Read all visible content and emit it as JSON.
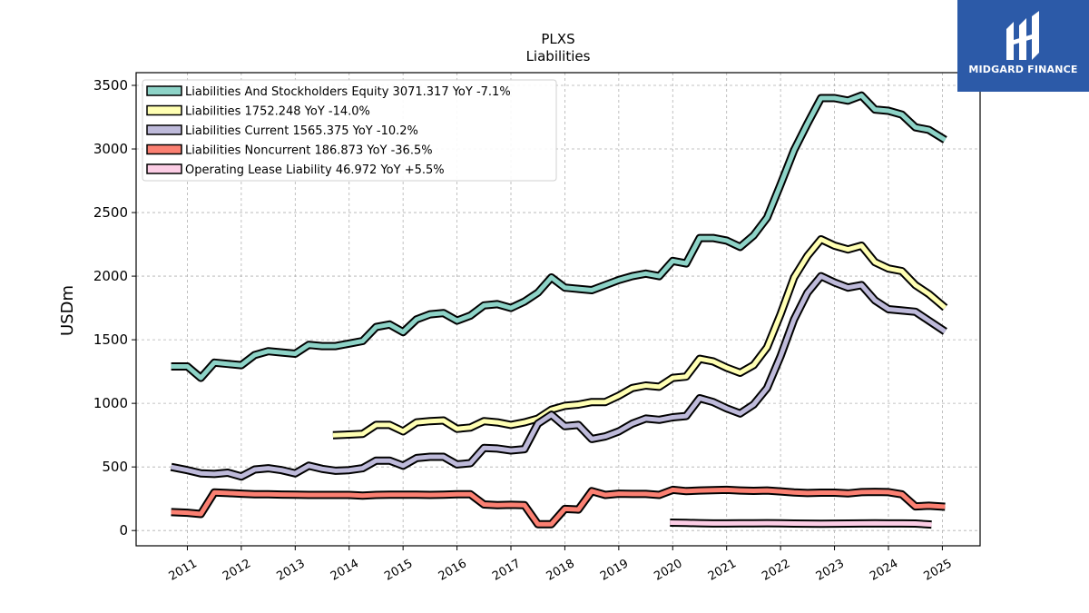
{
  "chart_data": {
    "type": "line",
    "title": "PLXS",
    "subtitle": "Liabilities",
    "xlabel": "",
    "ylabel": "USDm",
    "xlim": [
      2010.05,
      2025.7
    ],
    "ylim": [
      -120,
      3600
    ],
    "y_ticks": [
      0,
      500,
      1000,
      1500,
      2000,
      2500,
      3000,
      3500
    ],
    "x_ticks": [
      2011,
      2012,
      2013,
      2014,
      2015,
      2016,
      2017,
      2018,
      2019,
      2020,
      2021,
      2022,
      2023,
      2024,
      2025
    ],
    "grid": true,
    "legend_position": "top-left",
    "series": [
      {
        "name": "Liabilities And Stockholders Equity",
        "legend_label": "Liabilities And Stockholders Equity  3071.317 YoY -7.1%",
        "color": "#8dd3c7",
        "x": [
          2010.7,
          2011.0,
          2011.25,
          2011.5,
          2011.75,
          2012.0,
          2012.25,
          2012.5,
          2012.75,
          2013.0,
          2013.25,
          2013.5,
          2013.75,
          2014.0,
          2014.25,
          2014.5,
          2014.75,
          2015.0,
          2015.25,
          2015.5,
          2015.75,
          2016.0,
          2016.25,
          2016.5,
          2016.75,
          2017.0,
          2017.25,
          2017.5,
          2017.75,
          2018.0,
          2018.25,
          2018.5,
          2018.75,
          2019.0,
          2019.25,
          2019.5,
          2019.75,
          2020.0,
          2020.25,
          2020.5,
          2020.75,
          2021.0,
          2021.25,
          2021.5,
          2021.75,
          2022.0,
          2022.25,
          2022.5,
          2022.75,
          2023.0,
          2023.25,
          2023.5,
          2023.75,
          2024.0,
          2024.25,
          2024.5,
          2024.75,
          2025.05
        ],
        "values": [
          1290,
          1290,
          1200,
          1320,
          1310,
          1300,
          1380,
          1410,
          1400,
          1390,
          1460,
          1450,
          1450,
          1470,
          1490,
          1600,
          1620,
          1560,
          1660,
          1700,
          1710,
          1650,
          1690,
          1770,
          1780,
          1750,
          1800,
          1870,
          1990,
          1910,
          1900,
          1890,
          1930,
          1970,
          2000,
          2020,
          2000,
          2120,
          2100,
          2300,
          2300,
          2280,
          2230,
          2320,
          2460,
          2720,
          2990,
          3200,
          3400,
          3400,
          3380,
          3420,
          3310,
          3300,
          3270,
          3170,
          3150,
          3071.317
        ]
      },
      {
        "name": "Liabilities",
        "legend_label": "Liabilities  1752.248 YoY -14.0%",
        "color": "#ffffb3",
        "x": [
          2013.7,
          2014.0,
          2014.25,
          2014.5,
          2014.75,
          2015.0,
          2015.25,
          2015.5,
          2015.75,
          2016.0,
          2016.25,
          2016.5,
          2016.75,
          2017.0,
          2017.25,
          2017.5,
          2017.75,
          2018.0,
          2018.25,
          2018.5,
          2018.75,
          2019.0,
          2019.25,
          2019.5,
          2019.75,
          2020.0,
          2020.25,
          2020.5,
          2020.75,
          2021.0,
          2021.25,
          2021.5,
          2021.75,
          2022.0,
          2022.25,
          2022.5,
          2022.75,
          2023.0,
          2023.25,
          2023.5,
          2023.75,
          2024.0,
          2024.25,
          2024.5,
          2024.75,
          2025.05
        ],
        "values": [
          750,
          755,
          760,
          830,
          830,
          780,
          850,
          860,
          865,
          800,
          810,
          860,
          850,
          830,
          850,
          880,
          950,
          980,
          990,
          1010,
          1010,
          1060,
          1120,
          1140,
          1130,
          1200,
          1210,
          1350,
          1330,
          1280,
          1240,
          1300,
          1440,
          1700,
          1990,
          2160,
          2290,
          2240,
          2210,
          2240,
          2110,
          2060,
          2040,
          1930,
          1860,
          1752.248
        ]
      },
      {
        "name": "Liabilities Current",
        "legend_label": "Liabilities Current  1565.375 YoY -10.2%",
        "color": "#bebada",
        "x": [
          2010.7,
          2011.0,
          2011.25,
          2011.5,
          2011.75,
          2012.0,
          2012.25,
          2012.5,
          2012.75,
          2013.0,
          2013.25,
          2013.5,
          2013.75,
          2014.0,
          2014.25,
          2014.5,
          2014.75,
          2015.0,
          2015.25,
          2015.5,
          2015.75,
          2016.0,
          2016.25,
          2016.5,
          2016.75,
          2017.0,
          2017.25,
          2017.5,
          2017.75,
          2018.0,
          2018.25,
          2018.5,
          2018.75,
          2019.0,
          2019.25,
          2019.5,
          2019.75,
          2020.0,
          2020.25,
          2020.5,
          2020.75,
          2021.0,
          2021.25,
          2021.5,
          2021.75,
          2022.0,
          2022.25,
          2022.5,
          2022.75,
          2023.0,
          2023.25,
          2023.5,
          2023.75,
          2024.0,
          2024.25,
          2024.5,
          2024.75,
          2025.05
        ],
        "values": [
          500,
          475,
          450,
          445,
          455,
          425,
          480,
          490,
          475,
          450,
          510,
          485,
          470,
          475,
          490,
          550,
          550,
          510,
          570,
          580,
          580,
          520,
          530,
          650,
          645,
          630,
          640,
          840,
          910,
          820,
          830,
          720,
          740,
          780,
          840,
          880,
          870,
          890,
          900,
          1040,
          1010,
          960,
          920,
          990,
          1120,
          1370,
          1660,
          1870,
          2000,
          1950,
          1910,
          1930,
          1810,
          1740,
          1730,
          1720,
          1650,
          1565.375
        ]
      },
      {
        "name": "Liabilities Noncurrent",
        "legend_label": "Liabilities Noncurrent  186.873 YoY -36.5%",
        "color": "#fb8072",
        "x": [
          2010.7,
          2011.0,
          2011.25,
          2011.5,
          2011.75,
          2012.0,
          2012.25,
          2012.5,
          2012.75,
          2013.0,
          2013.25,
          2013.5,
          2013.75,
          2014.0,
          2014.25,
          2014.5,
          2014.75,
          2015.0,
          2015.25,
          2015.5,
          2015.75,
          2016.0,
          2016.25,
          2016.5,
          2016.75,
          2017.0,
          2017.25,
          2017.5,
          2017.75,
          2018.0,
          2018.25,
          2018.5,
          2018.75,
          2019.0,
          2019.25,
          2019.5,
          2019.75,
          2020.0,
          2020.25,
          2020.5,
          2020.75,
          2021.0,
          2021.25,
          2021.5,
          2021.75,
          2022.0,
          2022.25,
          2022.5,
          2022.75,
          2023.0,
          2023.25,
          2023.5,
          2023.75,
          2024.0,
          2024.25,
          2024.5,
          2024.75,
          2025.05
        ],
        "values": [
          145,
          140,
          130,
          300,
          295,
          290,
          285,
          285,
          283,
          282,
          280,
          280,
          280,
          280,
          275,
          280,
          282,
          282,
          282,
          280,
          282,
          285,
          285,
          205,
          200,
          202,
          200,
          50,
          50,
          170,
          165,
          310,
          280,
          290,
          288,
          288,
          280,
          320,
          310,
          315,
          318,
          320,
          315,
          312,
          315,
          308,
          300,
          295,
          298,
          298,
          292,
          302,
          304,
          302,
          285,
          190,
          195,
          186.873
        ]
      },
      {
        "name": "Operating Lease Liability",
        "legend_label": "Operating Lease Liability  46.972 YoY +5.5%",
        "color": "#fccde5",
        "x": [
          2019.95,
          2020.25,
          2020.5,
          2020.75,
          2021.0,
          2021.25,
          2021.5,
          2021.75,
          2022.0,
          2022.25,
          2022.5,
          2022.75,
          2023.0,
          2023.25,
          2023.5,
          2023.75,
          2024.0,
          2024.25,
          2024.5,
          2024.8
        ],
        "values": [
          62,
          60,
          58,
          56,
          56,
          57,
          57,
          58,
          57,
          55,
          54,
          53,
          54,
          55,
          56,
          57,
          56,
          56,
          55,
          46.972
        ]
      }
    ]
  },
  "brand": {
    "name": "MIDGARD FINANCE",
    "color": "#2c5aa8"
  }
}
